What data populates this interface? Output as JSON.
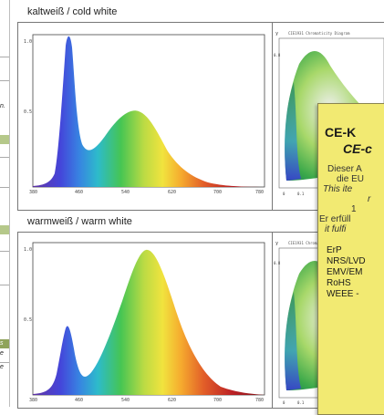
{
  "sections": [
    {
      "title": "kaltweiß / cold white",
      "spectrum": {
        "y_ticks": [
          "1.0",
          "0.5"
        ],
        "x_ticks": [
          "380",
          "460",
          "540",
          "620",
          "700",
          "780"
        ]
      }
    },
    {
      "title": "warmweiß / warm white",
      "spectrum": {
        "y_ticks": [
          "1.0",
          "0.5"
        ],
        "x_ticks": [
          "380",
          "460",
          "540",
          "620",
          "700",
          "780"
        ]
      }
    }
  ],
  "cie": {
    "title": "CIE1931 Chromaticity Diagram",
    "y_label": "y",
    "y_tick": "0.8",
    "x_ticks": [
      "0",
      "0.1"
    ]
  },
  "left_strip": {
    "items": [
      "n.",
      "s",
      "e",
      "e"
    ]
  },
  "ce_box": {
    "title": "CE-K",
    "subtitle": "CE-c",
    "lines": [
      "Dieser A",
      "die EU",
      "This ite",
      "r",
      "1",
      "Er erfüll",
      "it fulfi"
    ],
    "list": [
      "ErP",
      "NRS/LVD",
      "EMV/EM",
      "RoHS",
      "WEEE -"
    ],
    "background": "#f2ea72"
  }
}
